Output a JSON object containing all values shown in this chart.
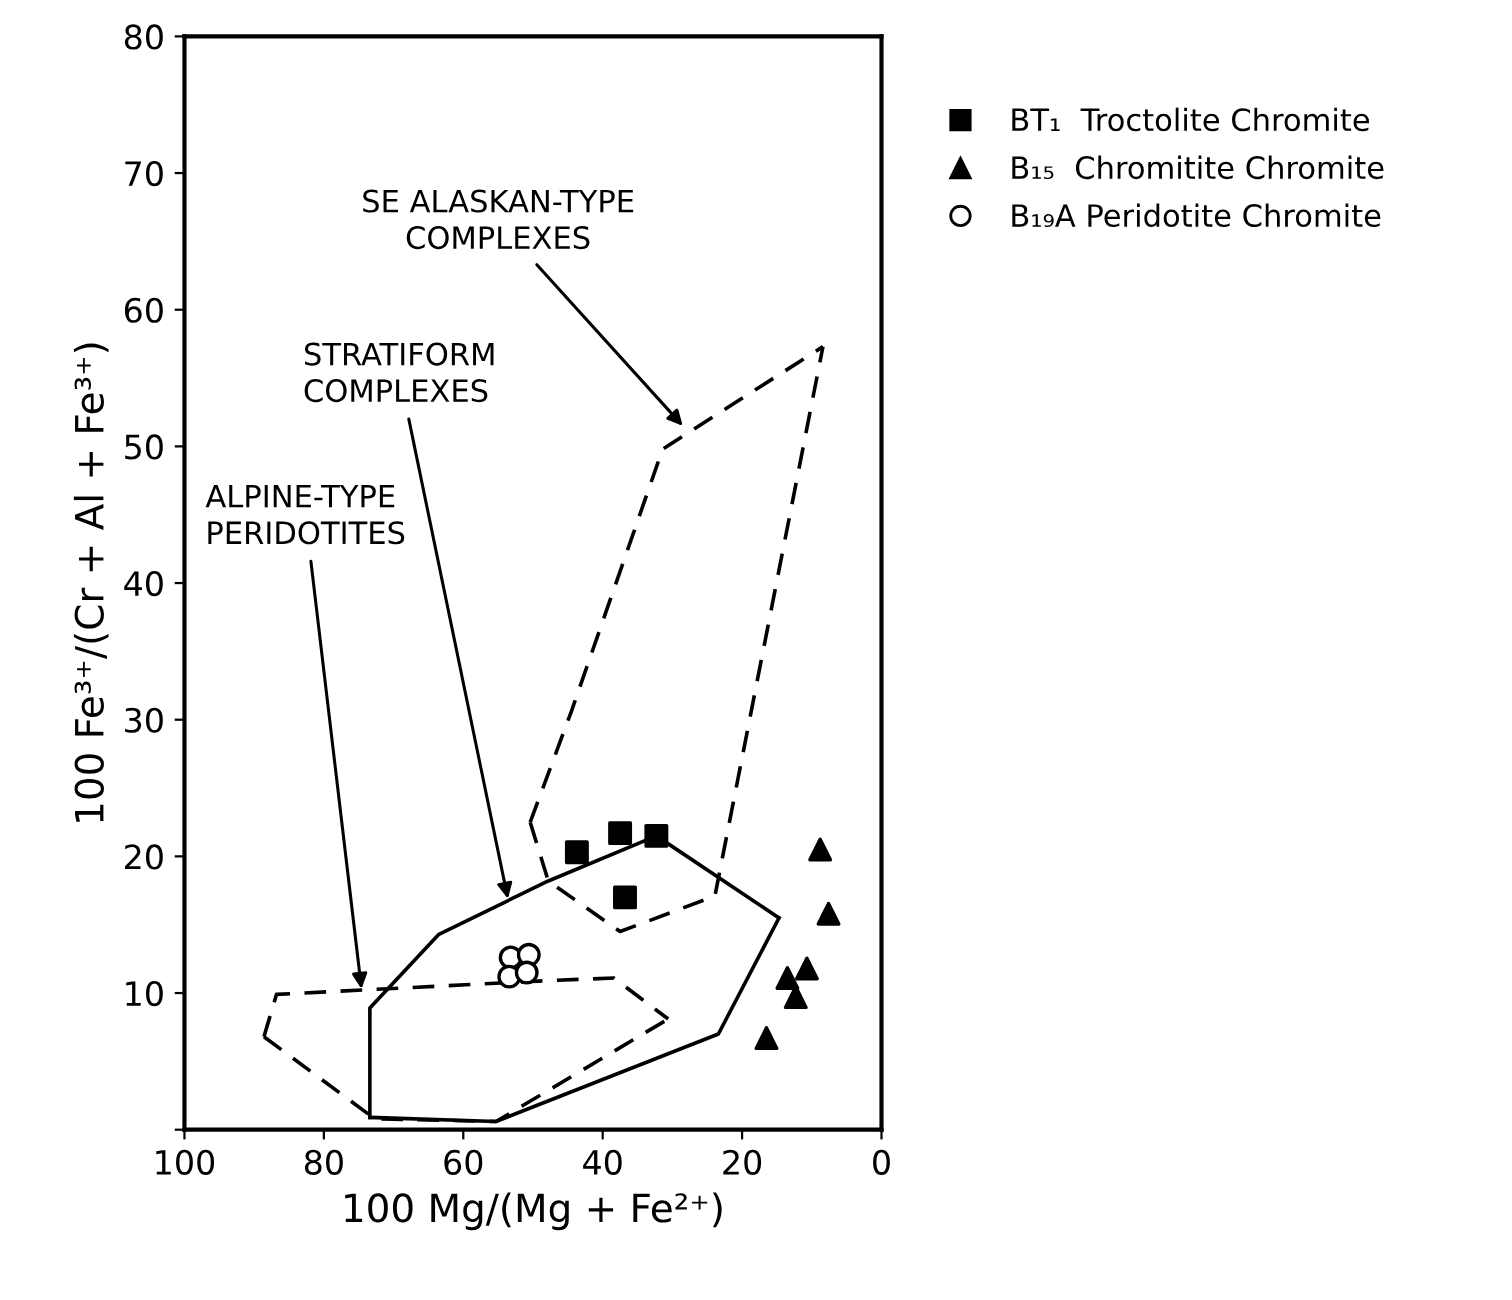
{
  "chart_data": {
    "type": "scatter",
    "xlabel": "100 Mg/(Mg + Fe²⁺)",
    "ylabel": "100 Fe³⁺/(Cr + Al + Fe³⁺)",
    "xlim": [
      100,
      0
    ],
    "xticks": [
      100,
      80,
      60,
      40,
      20,
      0
    ],
    "ylim": [
      0,
      80
    ],
    "yticks": [
      {
        "value": 0,
        "label": null
      },
      10,
      20,
      30,
      40,
      50,
      60,
      70,
      80
    ],
    "grid": false,
    "legend": "top right",
    "series": [
      {
        "name": "BT₁  Troctolite Chromite",
        "color": "#000000",
        "marker": "square",
        "x": [
          43.7,
          37.5,
          32.3,
          36.8
        ],
        "values": [
          20.3,
          21.7,
          21.5,
          17.0
        ]
      },
      {
        "name": "B₁₅  Chromitite Chromite",
        "color": "#000000",
        "marker": "triangle",
        "x": [
          8.8,
          7.6,
          10.7,
          13.5,
          12.3,
          16.5
        ],
        "values": [
          20.5,
          15.8,
          11.8,
          11.1,
          9.7,
          6.7
        ]
      },
      {
        "name": "B₁₉A Peridotite Chromite",
        "color": "#000000",
        "marker": "circle",
        "x": [
          53.2,
          50.6,
          53.4,
          50.9
        ],
        "values": [
          12.6,
          12.8,
          11.2,
          11.5
        ]
      },
      {
        "type": "line",
        "color": "#000000",
        "line_style": "dashed",
        "x": [
          88.6,
          86.8,
          48.3,
          38.4,
          30.6
        ],
        "values": [
          6.8,
          9.9,
          10.9,
          11.1,
          8.1
        ]
      },
      {
        "type": "line",
        "color": "#000000",
        "line_style": "dashed",
        "x": [
          88.6,
          72.7,
          55.3,
          30.6
        ],
        "values": [
          6.8,
          0.8,
          0.6,
          8.1
        ]
      },
      {
        "type": "line",
        "color": "#000000",
        "line_style": "solid",
        "x": [
          73.4,
          73.4,
          63.5,
          47.8,
          32.3,
          14.7
        ],
        "values": [
          0.9,
          8.9,
          14.3,
          18.2,
          21.5,
          15.5
        ]
      },
      {
        "type": "line",
        "color": "#000000",
        "line_style": "solid",
        "x": [
          73.4,
          55.3,
          23.4,
          14.7
        ],
        "values": [
          0.9,
          0.6,
          7.0,
          15.5
        ]
      },
      {
        "type": "line",
        "color": "#000000",
        "line_style": "dashed",
        "x": [
          50.4,
          44.5,
          31.4,
          8.4
        ],
        "values": [
          22.5,
          30.6,
          49.8,
          57.3
        ]
      },
      {
        "type": "line",
        "color": "#000000",
        "line_style": "dashed",
        "x": [
          50.4,
          47.8,
          37.5,
          23.9,
          8.4
        ],
        "values": [
          22.5,
          18.2,
          14.5,
          17.1,
          57.3
        ]
      }
    ],
    "annotations": [
      {
        "text": "SE ALASKAN-TYPE\nCOMPLEXES",
        "x": 28.5,
        "y": 51.5
      },
      {
        "text": "STRATIFORM\nCOMPLEXES",
        "x": 53.6,
        "y": 16.9
      },
      {
        "text": "ALPINE-TYPE\nPERIDOTITES",
        "x": 74.6,
        "y": 10.3
      }
    ]
  }
}
